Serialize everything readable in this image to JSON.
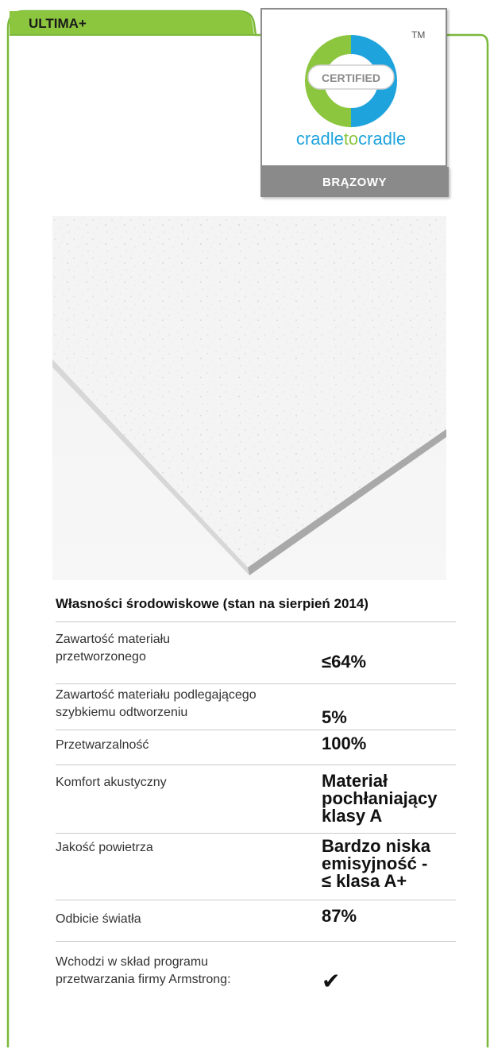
{
  "product": {
    "name": "ULTIMA+"
  },
  "certification": {
    "seal_text": "CERTIFIED",
    "trademark": "TM",
    "brand_part1": "cradle",
    "brand_part2": "to",
    "brand_part3": "cradle",
    "level": "BRĄZOWY",
    "colors": {
      "green": "#8cc63f",
      "blue": "#1fa3dc",
      "grey_bar": "#8a8a8a",
      "frame": "#7ab83a"
    }
  },
  "environmental": {
    "title": "Własności środowiskowe (stan na sierpień 2014)",
    "rows": [
      {
        "label": "Zawartość materiału\nprzetworzonego",
        "value": "≤64%"
      },
      {
        "label": "Zawartość materiału podlegającego\nszybkiemu odtworzeniu",
        "value": "5%"
      },
      {
        "label": "Przetwarzalność",
        "value": "100%"
      },
      {
        "label": "Komfort akustyczny",
        "value": "Materiał\npochłaniający\nklasy A"
      },
      {
        "label": "Jakość powietrza",
        "value": "Bardzo niska\nemisyjność -\n≤ klasa A+"
      },
      {
        "label": "Odbicie światła",
        "value": "87%"
      },
      {
        "label": "Wchodzi w skład programu\nprzetwarzania firmy Armstrong:",
        "value": "✔",
        "icon": "checkmark-icon"
      }
    ]
  }
}
